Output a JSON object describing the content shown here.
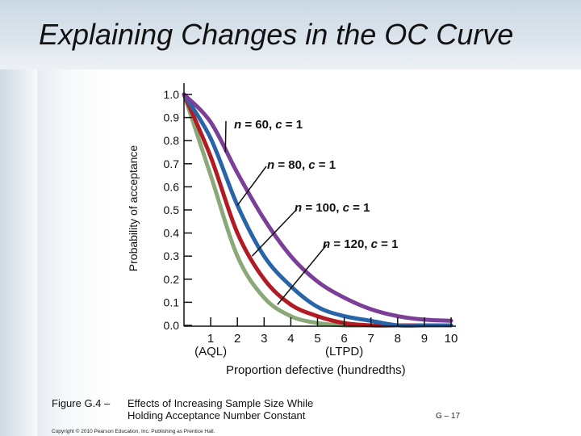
{
  "slide": {
    "title": "Explaining Changes in the OC Curve",
    "figure_number": "Figure G.4 –",
    "caption_lines": [
      "Effects of Increasing Sample Size While",
      "Holding Acceptance Number Constant"
    ],
    "copyright": "Copyright © 2010 Pearson Education, Inc. Publishing as Prentice Hall.",
    "slide_number": "G – 17"
  },
  "chart_data": {
    "type": "line",
    "title": "",
    "xlabel": "Proportion defective (hundredths)",
    "ylabel": "Probability of acceptance",
    "xlim": [
      0,
      10
    ],
    "ylim": [
      0,
      1
    ],
    "x_ticks": [
      1,
      2,
      3,
      4,
      5,
      6,
      7,
      8,
      9,
      10
    ],
    "x_tick_labels": [
      "1",
      "2",
      "3",
      "4",
      "5",
      "6",
      "7",
      "8",
      "9",
      "10"
    ],
    "x_tick_sublabels": [
      {
        "x": 1,
        "text": "(AQL)"
      },
      {
        "x": 6,
        "text": "(LTPD)"
      }
    ],
    "y_ticks": [
      0,
      0.1,
      0.2,
      0.3,
      0.4,
      0.5,
      0.6,
      0.7,
      0.8,
      0.9,
      1.0
    ],
    "y_tick_labels": [
      "0.0",
      "0.1",
      "0.2",
      "0.3",
      "0.4",
      "0.5",
      "0.6",
      "0.7",
      "0.8",
      "0.9",
      "1.0"
    ],
    "x": [
      0,
      1,
      2,
      3,
      4,
      5,
      6,
      7,
      8,
      9,
      10
    ],
    "series": [
      {
        "name": "n = 60, c = 1",
        "n": 60,
        "c": 1,
        "color": "#7b3f98",
        "values": [
          1.0,
          0.88,
          0.66,
          0.46,
          0.3,
          0.19,
          0.12,
          0.07,
          0.04,
          0.025,
          0.02
        ]
      },
      {
        "name": "n = 80, c = 1",
        "n": 80,
        "c": 1,
        "color": "#2a64a8",
        "values": [
          1.0,
          0.81,
          0.52,
          0.3,
          0.17,
          0.08,
          0.04,
          0.02,
          0.0,
          0.0,
          0.0
        ]
      },
      {
        "name": "n = 100, c = 1",
        "n": 100,
        "c": 1,
        "color": "#b31b24",
        "values": [
          1.0,
          0.73,
          0.4,
          0.2,
          0.09,
          0.04,
          0.01,
          0.0,
          0.0,
          0.0,
          0.0
        ]
      },
      {
        "name": "n = 120, c = 1",
        "n": 120,
        "c": 1,
        "color": "#8aa878",
        "values": [
          1.0,
          0.65,
          0.3,
          0.12,
          0.04,
          0.01,
          0.0,
          0.0,
          0.0,
          0.0,
          0.0
        ]
      }
    ],
    "annotations": [
      {
        "text_parts": [
          "n",
          " = 60, ",
          "c",
          " = 1"
        ],
        "series": 0,
        "point_x": 1.55,
        "point_y": 0.75
      },
      {
        "text_parts": [
          "n",
          " = 80, ",
          "c",
          " = 1"
        ],
        "series": 1,
        "point_x": 2.0,
        "point_y": 0.52
      },
      {
        "text_parts": [
          "n",
          " = 100, ",
          "c",
          " = 1"
        ],
        "series": 2,
        "point_x": 2.55,
        "point_y": 0.3
      },
      {
        "text_parts": [
          "n",
          " = 120, ",
          "c",
          " = 1"
        ],
        "series": 3,
        "point_x": 3.5,
        "point_y": 0.09
      }
    ],
    "grid": false,
    "legend": "none"
  }
}
